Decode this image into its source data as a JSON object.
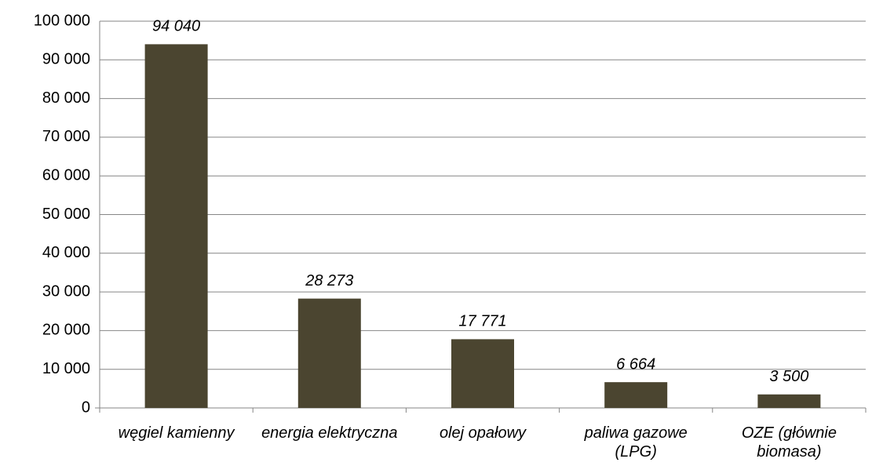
{
  "chart_data": {
    "type": "bar",
    "categories": [
      "węgiel kamienny",
      "energia elektryczna",
      "olej opałowy",
      "paliwa gazowe (LPG)",
      "OZE (głównie biomasa)"
    ],
    "values": [
      94040,
      28273,
      17771,
      6664,
      3500
    ],
    "value_labels": [
      "94 040",
      "28 273",
      "17 771",
      "6 664",
      "3 500"
    ],
    "color": "#4b4530",
    "ylim": [
      0,
      100000
    ],
    "yticks": [
      0,
      {
        "value": 10000,
        "label": "10 000"
      },
      {
        "value": 20000,
        "label": "20 000"
      },
      {
        "value": 30000,
        "label": "30 000"
      },
      {
        "value": 40000,
        "label": "40 000"
      },
      {
        "value": 50000,
        "label": "50 000"
      },
      {
        "value": 60000,
        "label": "60 000"
      },
      {
        "value": 70000,
        "label": "70 000"
      },
      {
        "value": 80000,
        "label": "80 000"
      },
      {
        "value": 90000,
        "label": "90 000"
      },
      {
        "value": 100000,
        "label": "100 000"
      }
    ],
    "grid": true
  }
}
